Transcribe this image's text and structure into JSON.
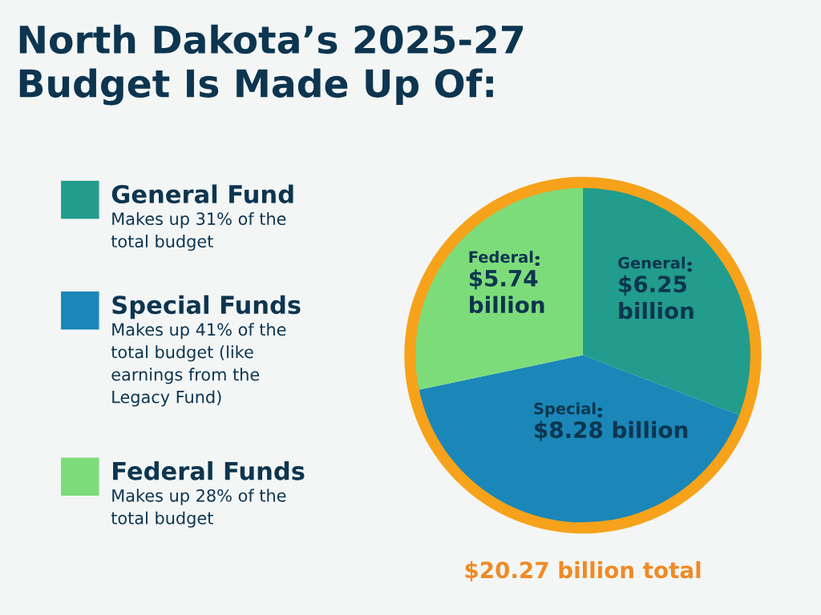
{
  "chart_data": {
    "type": "pie",
    "title": "North Dakota’s 2025-27\nBudget Is Made Up Of:",
    "categories": [
      "General",
      "Special",
      "Federal"
    ],
    "values": [
      6.25,
      8.28,
      5.74
    ],
    "value_labels": [
      "$6.25 billion",
      "$8.28 billion",
      "$5.74 billion"
    ],
    "colors": [
      "#229c8c",
      "#1a87b8",
      "#7ddc7a"
    ],
    "annotations": [
      "General Fund",
      "Makes up 31% of the\ntotal budget",
      "Special Funds",
      "Makes up 41% of the\ntotal budget (like\nearnings from the\nLegacy Fund)",
      "Federal Funds",
      "Makes up 28% of the\ntotal budget",
      "$20.27 billion total"
    ]
  }
}
